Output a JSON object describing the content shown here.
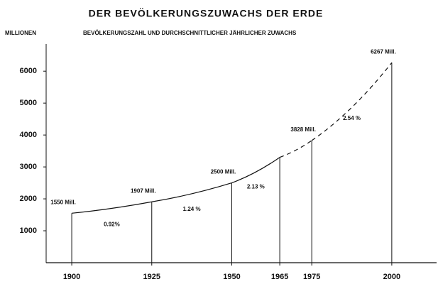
{
  "chart_data": {
    "type": "line",
    "title": "DER BEVÖLKERUNGSZUWACHS DER ERDE",
    "subtitle": "BEVÖLKERUNGSZAHL UND DURCHSCHNITTLICHER JÄHRLICHER ZUWACHS",
    "y_label": "MILLIONEN",
    "x": [
      1900,
      1925,
      1950,
      1965,
      1975,
      2000
    ],
    "values": [
      1550,
      1907,
      2500,
      3300,
      3828,
      6267
    ],
    "value_labels": [
      "1550 Mill.",
      "1907 Mill.",
      "2500 Mill.",
      null,
      "3828 Mill.",
      "6267 Mill."
    ],
    "growth_rates": [
      "0.92%",
      "1.24 %",
      "2.13 %",
      null,
      "2.54 %"
    ],
    "segment_styles": [
      "solid",
      "solid",
      "solid",
      "dashed",
      "dashed"
    ],
    "drop_lines": true,
    "color": "#111111",
    "xlim": [
      1892,
      2014
    ],
    "xticks": [
      1900,
      1925,
      1950,
      1965,
      1975,
      2000
    ],
    "ylim": [
      0,
      6850
    ],
    "yticks": [
      1000,
      2000,
      3000,
      4000,
      5000,
      6000
    ]
  }
}
